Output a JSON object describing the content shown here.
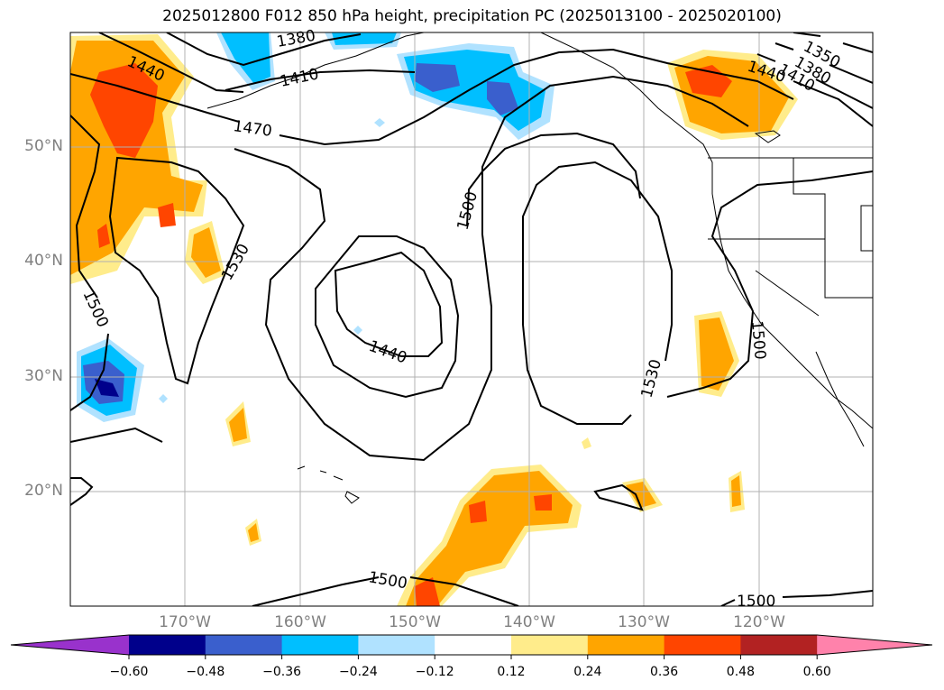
{
  "title": "2025012800 F012 850 hPa height, precipitation PC (2025013100 - 2025020100)",
  "latitude_labels": [
    "50°N",
    "40°N",
    "30°N",
    "20°N"
  ],
  "longitude_labels": [
    "170°W",
    "160°W",
    "150°W",
    "140°W",
    "130°W",
    "120°W"
  ],
  "contour_labels": [
    "1380",
    "1410",
    "1440",
    "1470",
    "1500",
    "1530",
    "1440",
    "1500",
    "1530",
    "1500",
    "1350",
    "1380",
    "1410",
    "1440",
    "1500",
    "1500"
  ],
  "colorbar": {
    "ticks": [
      "−0.60",
      "−0.48",
      "−0.36",
      "−0.24",
      "−0.12",
      "0.12",
      "0.24",
      "0.36",
      "0.48",
      "0.60"
    ],
    "colors": [
      "#9932cc",
      "#00008b",
      "#3a5fcd",
      "#00bfff",
      "#b0e2ff",
      "#ffffff",
      "#ffec8b",
      "#ffa500",
      "#ff4500",
      "#b22222",
      "#ff82ab"
    ]
  }
}
